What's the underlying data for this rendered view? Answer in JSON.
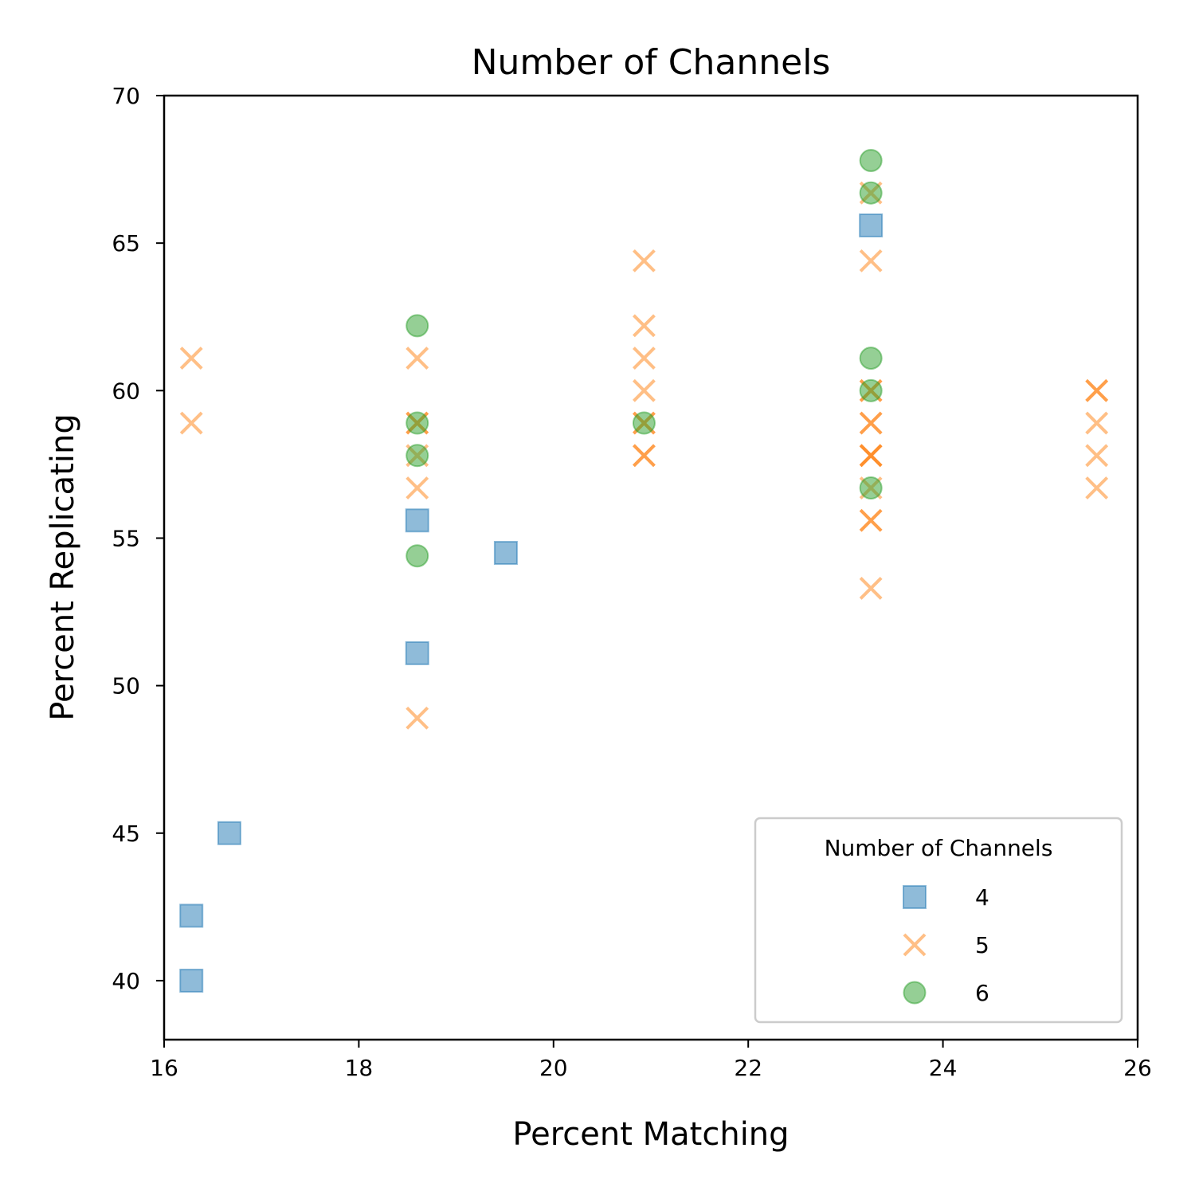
{
  "chart_data": {
    "type": "scatter",
    "title": "Number of Channels",
    "xlabel": "Percent Matching",
    "ylabel": "Percent Replicating",
    "xlim": [
      16,
      26
    ],
    "ylim": [
      38,
      70
    ],
    "xticks": [
      16,
      18,
      20,
      22,
      24,
      26
    ],
    "yticks": [
      40,
      45,
      50,
      55,
      60,
      65,
      70
    ],
    "grid": false,
    "legend": {
      "title": "Number of Channels",
      "placement": "lower-right"
    },
    "series": [
      {
        "name": "4",
        "marker": "square",
        "color": "#1f77b4",
        "points": [
          [
            16.28,
            40.0
          ],
          [
            16.28,
            42.2
          ],
          [
            16.67,
            45.0
          ],
          [
            18.6,
            51.1
          ],
          [
            18.6,
            55.6
          ],
          [
            19.51,
            54.5
          ],
          [
            23.26,
            65.6
          ]
        ]
      },
      {
        "name": "5",
        "marker": "x",
        "color": "#ff7f0e",
        "points": [
          [
            16.28,
            58.9
          ],
          [
            16.28,
            61.1
          ],
          [
            18.6,
            48.9
          ],
          [
            18.6,
            56.7
          ],
          [
            18.6,
            57.8
          ],
          [
            18.6,
            58.9
          ],
          [
            18.6,
            58.9
          ],
          [
            18.6,
            61.1
          ],
          [
            20.93,
            57.8
          ],
          [
            20.93,
            57.8
          ],
          [
            20.93,
            58.9
          ],
          [
            20.93,
            58.9
          ],
          [
            20.93,
            60.0
          ],
          [
            20.93,
            61.1
          ],
          [
            20.93,
            62.2
          ],
          [
            20.93,
            64.4
          ],
          [
            23.26,
            53.3
          ],
          [
            23.26,
            55.6
          ],
          [
            23.26,
            55.6
          ],
          [
            23.26,
            56.7
          ],
          [
            23.26,
            57.8
          ],
          [
            23.26,
            57.8
          ],
          [
            23.26,
            57.8
          ],
          [
            23.26,
            58.9
          ],
          [
            23.26,
            58.9
          ],
          [
            23.26,
            60.0
          ],
          [
            23.26,
            60.0
          ],
          [
            23.26,
            64.4
          ],
          [
            23.26,
            66.7
          ],
          [
            25.58,
            56.7
          ],
          [
            25.58,
            57.8
          ],
          [
            25.58,
            58.9
          ],
          [
            25.58,
            60.0
          ],
          [
            25.58,
            60.0
          ]
        ]
      },
      {
        "name": "6",
        "marker": "circle",
        "color": "#2ca02c",
        "points": [
          [
            18.6,
            54.4
          ],
          [
            18.6,
            57.8
          ],
          [
            18.6,
            58.9
          ],
          [
            18.6,
            62.2
          ],
          [
            20.93,
            58.9
          ],
          [
            23.26,
            56.7
          ],
          [
            23.26,
            60.0
          ],
          [
            23.26,
            61.1
          ],
          [
            23.26,
            66.7
          ],
          [
            23.26,
            67.8
          ]
        ]
      }
    ]
  }
}
